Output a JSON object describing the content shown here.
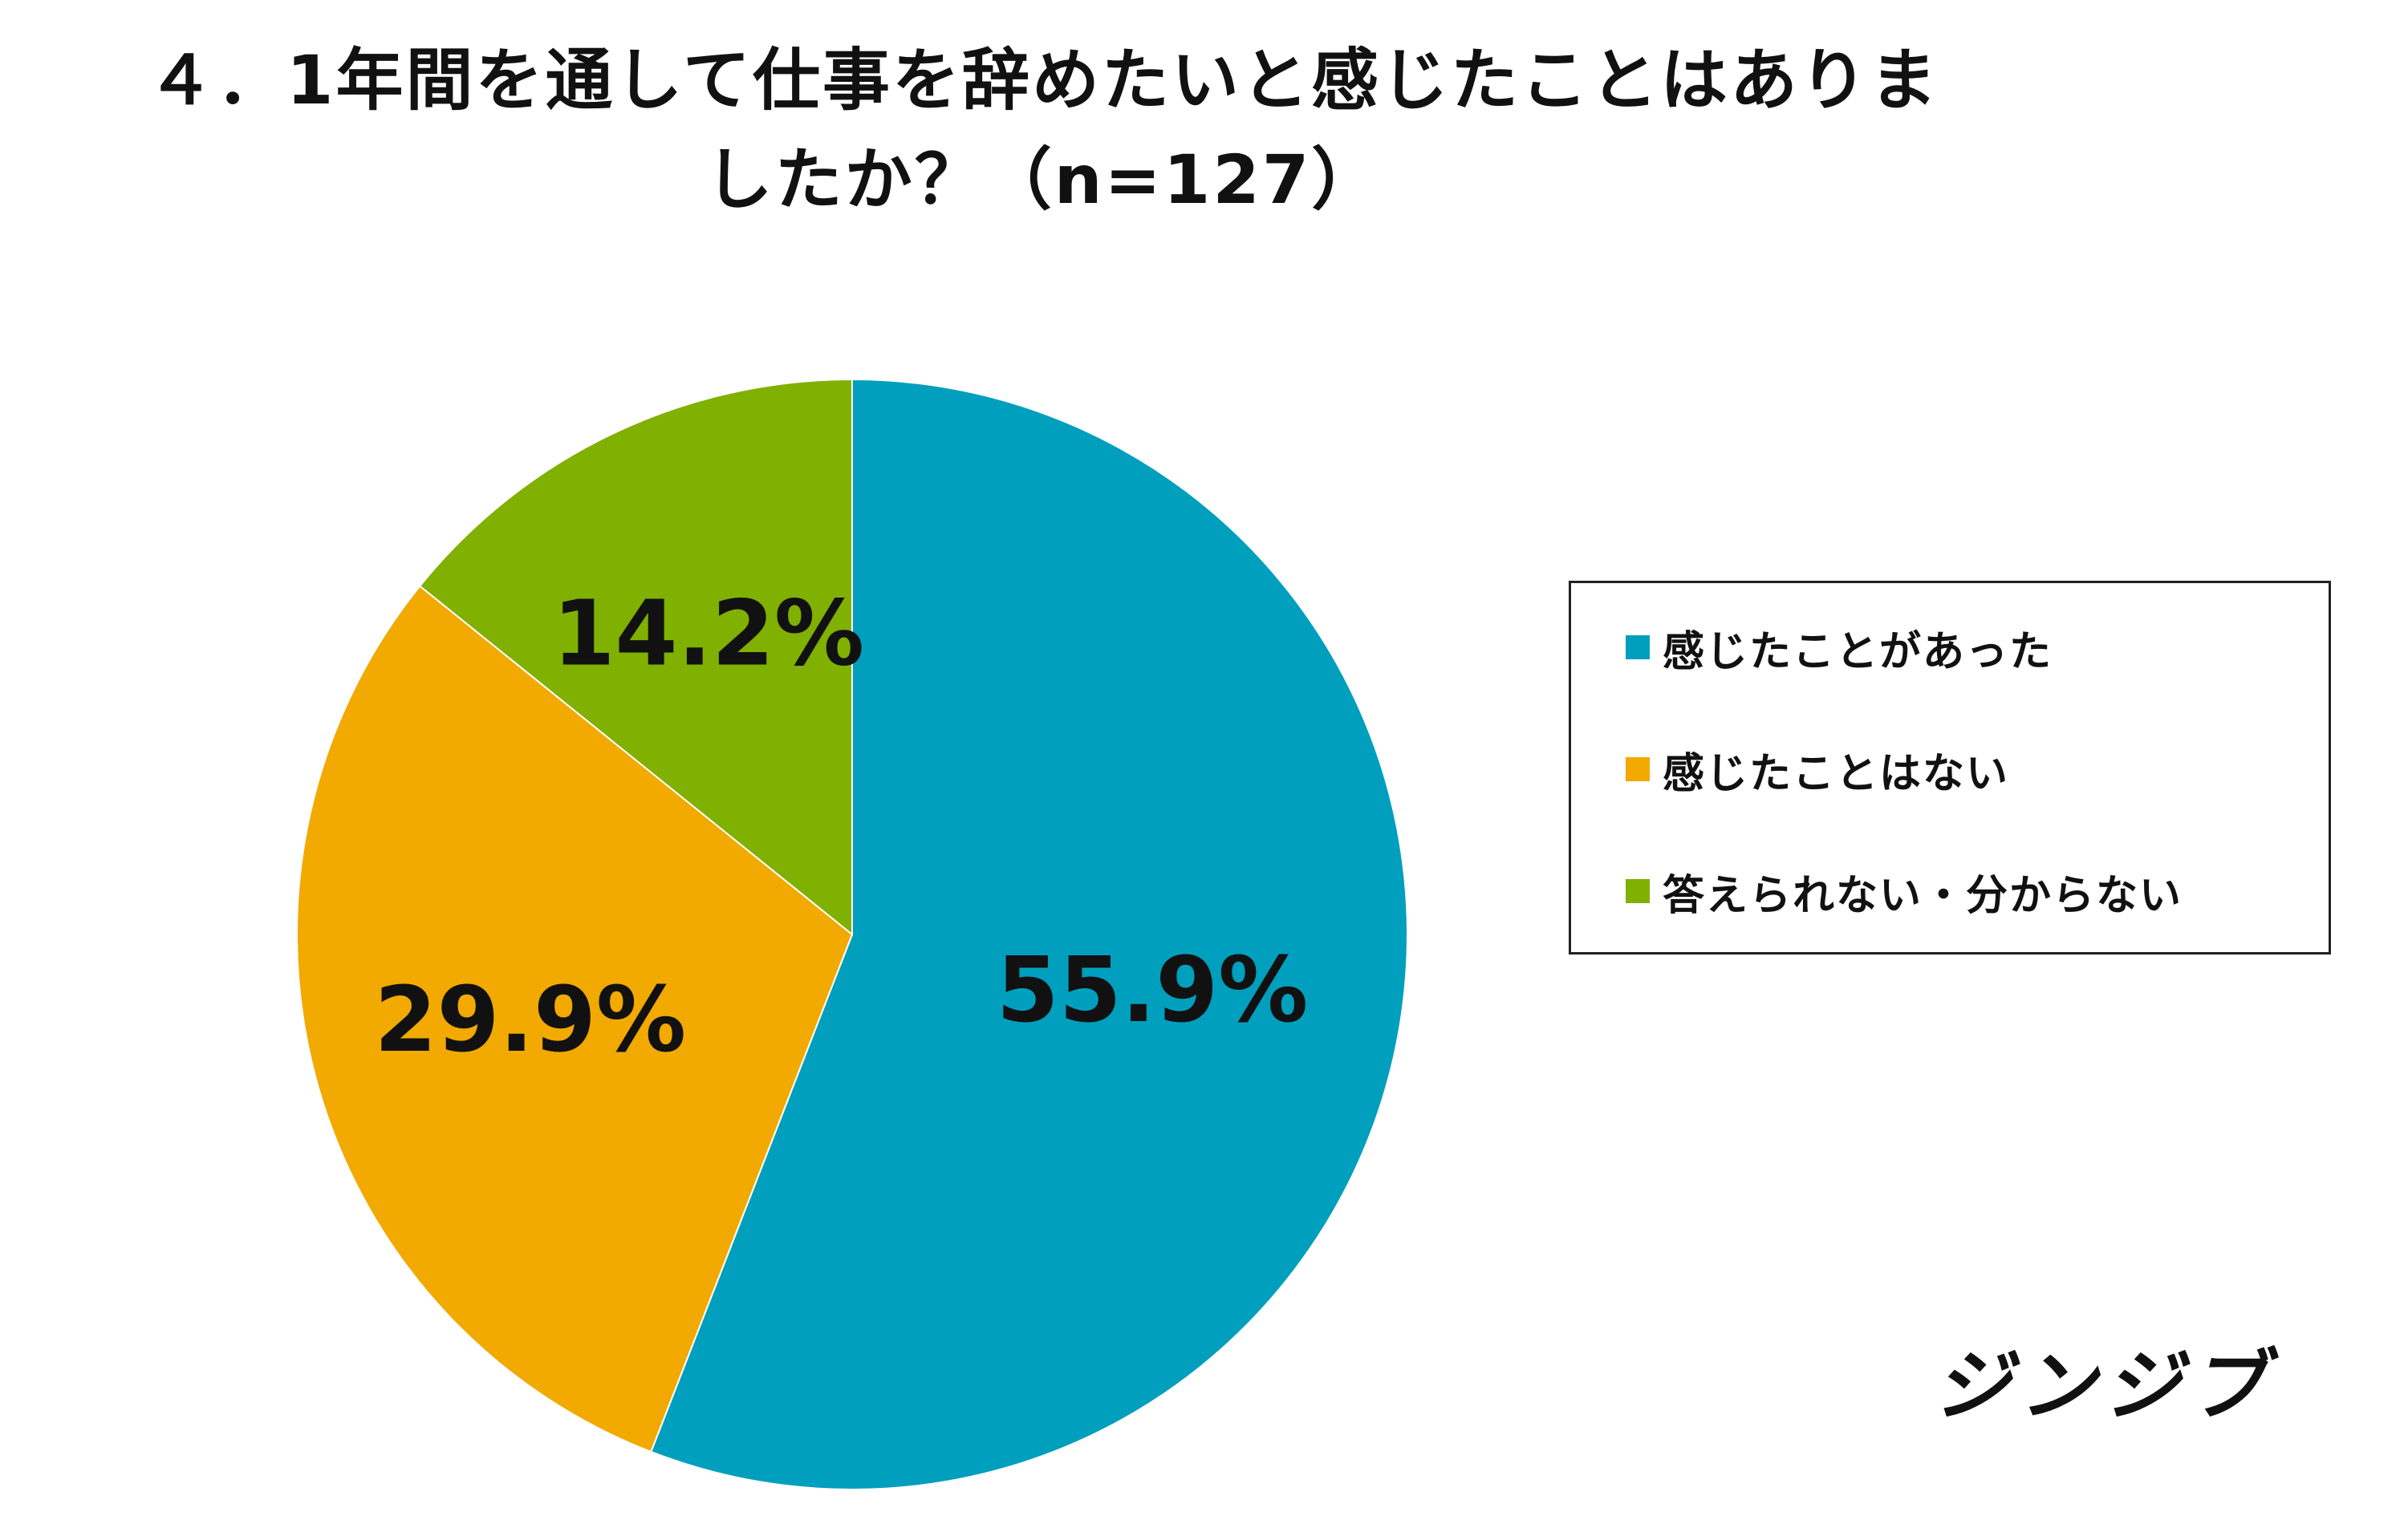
{
  "title": {
    "line1": "４．1年間を通して仕事を辞めたいと感じたことはありま",
    "line2": "したか？（n=127）"
  },
  "chart_data": {
    "type": "pie",
    "title": "４．1年間を通して仕事を辞めたいと感じたことはありましたか？（n=127）",
    "n": 127,
    "categories": [
      "感じたことがあった",
      "感じたことはない",
      "答えられない・分からない"
    ],
    "values": [
      55.9,
      29.9,
      14.2
    ],
    "labels": [
      "55.9%",
      "29.9%",
      "14.2%"
    ],
    "colors": [
      "#009FBD",
      "#F2A900",
      "#80B000"
    ],
    "start_angle": "12 o'clock",
    "direction": "clockwise",
    "legend_position": "right"
  },
  "legend": {
    "items": [
      {
        "label": "感じたことがあった",
        "color": "#009FBD"
      },
      {
        "label": "感じたことはない",
        "color": "#F2A900"
      },
      {
        "label": "答えられない・分からない",
        "color": "#80B000"
      }
    ]
  },
  "logo": {
    "text": "ジンジブ"
  }
}
